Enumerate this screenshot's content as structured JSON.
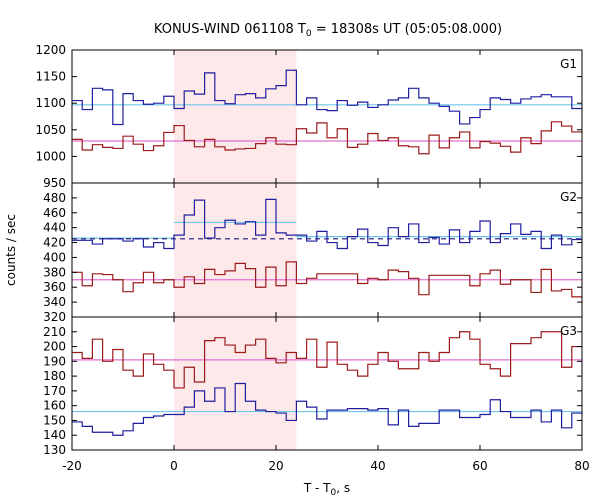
{
  "figure": {
    "title_main": "KONUS-WIND 061108 T",
    "title_sub": "0",
    "title_rest": " = 18308s UT (05:05:08.000)",
    "xlabel_main": "T - T",
    "xlabel_sub": "0",
    "xlabel_rest": ", s",
    "ylabel": "counts / sec"
  },
  "colors": {
    "blue": "#1f1f9e",
    "red": "#9b1a1a",
    "lightblue": "#6fc6ea",
    "pink": "#e070d0",
    "shade": "#fde8ea",
    "dashed": "#1a1a7a"
  },
  "chart_data": [
    {
      "type": "line",
      "panel": "G1",
      "label": "G1",
      "xlim": [
        -20,
        80
      ],
      "ylim": [
        950,
        1200
      ],
      "yticks": [
        950,
        1000,
        1050,
        1100,
        1150,
        1200
      ],
      "xticks": [
        -20,
        0,
        20,
        40,
        60,
        80
      ],
      "shaded_interval": [
        0,
        24
      ],
      "bin_edges": [
        -20,
        -18,
        -16,
        -14,
        -12,
        -10,
        -8,
        -6,
        -4,
        -2,
        0,
        2,
        4,
        6,
        8,
        10,
        12,
        14,
        16,
        18,
        20,
        22,
        24,
        26,
        28,
        30,
        32,
        34,
        36,
        38,
        40,
        42,
        44,
        46,
        48,
        50,
        52,
        54,
        56,
        58,
        60,
        62,
        64,
        66,
        68,
        70,
        72,
        74,
        76,
        78,
        80
      ],
      "series": [
        {
          "values": [
            1105,
            1088,
            1128,
            1125,
            1060,
            1118,
            1105,
            1098,
            1100,
            1113,
            1090,
            1123,
            1117,
            1157,
            1105,
            1099,
            1116,
            1118,
            1110,
            1127,
            1133,
            1162,
            1097,
            1110,
            1088,
            1086,
            1105,
            1096,
            1102,
            1092,
            1097,
            1106,
            1110,
            1128,
            1110,
            1100,
            1094,
            1085,
            1061,
            1073,
            1088,
            1110,
            1107,
            1100,
            1108,
            1112,
            1116,
            1112,
            1112,
            1090
          ],
          "color_key": "blue"
        },
        {
          "values": [
            1032,
            1012,
            1022,
            1017,
            1015,
            1038,
            1023,
            1011,
            1020,
            1045,
            1058,
            1030,
            1018,
            1032,
            1018,
            1012,
            1014,
            1015,
            1024,
            1035,
            1023,
            1022,
            1052,
            1044,
            1063,
            1035,
            1052,
            1017,
            1023,
            1043,
            1030,
            1035,
            1020,
            1018,
            1005,
            1040,
            1016,
            1035,
            1046,
            1016,
            1028,
            1025,
            1019,
            1008,
            1035,
            1024,
            1048,
            1065,
            1057,
            1046
          ],
          "color_key": "red"
        }
      ],
      "fit_lines": [
        {
          "x": [
            -20,
            80
          ],
          "y": [
            1097,
            1097
          ],
          "color_key": "lightblue",
          "dash": false
        },
        {
          "x": [
            -20,
            80
          ],
          "y": [
            1029,
            1029
          ],
          "color_key": "pink",
          "dash": false
        }
      ]
    },
    {
      "type": "line",
      "panel": "G2",
      "label": "G2",
      "xlim": [
        -20,
        80
      ],
      "ylim": [
        320,
        500
      ],
      "yticks": [
        320,
        340,
        360,
        380,
        400,
        420,
        440,
        460,
        480
      ],
      "xticks": [
        -20,
        0,
        20,
        40,
        60,
        80
      ],
      "shaded_interval": [
        0,
        24
      ],
      "bin_edges": [
        -20,
        -18,
        -16,
        -14,
        -12,
        -10,
        -8,
        -6,
        -4,
        -2,
        0,
        2,
        4,
        6,
        8,
        10,
        12,
        14,
        16,
        18,
        20,
        22,
        24,
        26,
        28,
        30,
        32,
        34,
        36,
        38,
        40,
        42,
        44,
        46,
        48,
        50,
        52,
        54,
        56,
        58,
        60,
        62,
        64,
        66,
        68,
        70,
        72,
        74,
        76,
        78,
        80
      ],
      "series": [
        {
          "values": [
            423,
            423,
            418,
            425,
            425,
            422,
            425,
            414,
            420,
            412,
            430,
            457,
            477,
            426,
            440,
            450,
            445,
            448,
            430,
            478,
            433,
            430,
            430,
            422,
            435,
            420,
            412,
            428,
            438,
            420,
            416,
            440,
            428,
            445,
            420,
            427,
            418,
            437,
            420,
            435,
            449,
            420,
            432,
            445,
            431,
            435,
            412,
            430,
            417,
            424
          ],
          "color_key": "blue"
        },
        {
          "values": [
            380,
            362,
            378,
            377,
            370,
            354,
            366,
            380,
            366,
            370,
            360,
            374,
            365,
            384,
            377,
            382,
            392,
            385,
            360,
            387,
            362,
            394,
            365,
            372,
            378,
            378,
            378,
            378,
            365,
            372,
            370,
            383,
            381,
            372,
            350,
            376,
            376,
            376,
            376,
            362,
            378,
            383,
            364,
            370,
            370,
            353,
            384,
            355,
            357,
            347
          ],
          "color_key": "red"
        }
      ],
      "fit_lines": [
        {
          "x": [
            0,
            24
          ],
          "y": [
            447,
            447
          ],
          "color_key": "lightblue",
          "dash": false
        },
        {
          "x": [
            -20,
            0
          ],
          "y": [
            426,
            426
          ],
          "color_key": "lightblue",
          "dash": false
        },
        {
          "x": [
            24,
            80
          ],
          "y": [
            428,
            428
          ],
          "color_key": "lightblue",
          "dash": false
        },
        {
          "x": [
            -20,
            80
          ],
          "y": [
            425,
            425
          ],
          "color_key": "dashed",
          "dash": true
        },
        {
          "x": [
            -20,
            80
          ],
          "y": [
            370,
            370
          ],
          "color_key": "pink",
          "dash": false
        }
      ]
    },
    {
      "type": "line",
      "panel": "G3",
      "label": "G3",
      "xlim": [
        -20,
        80
      ],
      "ylim": [
        130,
        220
      ],
      "yticks": [
        130,
        140,
        150,
        160,
        170,
        180,
        190,
        200,
        210
      ],
      "xticks": [
        -20,
        0,
        20,
        40,
        60,
        80
      ],
      "shaded_interval": [
        0,
        24
      ],
      "bin_edges": [
        -20,
        -18,
        -16,
        -14,
        -12,
        -10,
        -8,
        -6,
        -4,
        -2,
        0,
        2,
        4,
        6,
        8,
        10,
        12,
        14,
        16,
        18,
        20,
        22,
        24,
        26,
        28,
        30,
        32,
        34,
        36,
        38,
        40,
        42,
        44,
        46,
        48,
        50,
        52,
        54,
        56,
        58,
        60,
        62,
        64,
        66,
        68,
        70,
        72,
        74,
        76,
        78,
        80
      ],
      "series": [
        {
          "values": [
            149,
            146,
            142,
            142,
            140,
            143,
            148,
            152,
            153,
            154,
            154,
            159,
            170,
            163,
            172,
            156,
            175,
            163,
            157,
            156,
            155,
            150,
            163,
            159,
            151,
            157,
            157,
            158,
            158,
            157,
            158,
            147,
            157,
            146,
            148,
            148,
            157,
            157,
            152,
            152,
            154,
            164,
            156,
            152,
            152,
            157,
            149,
            157,
            145,
            155
          ],
          "color_key": "blue"
        },
        {
          "values": [
            196,
            192,
            205,
            190,
            198,
            184,
            180,
            195,
            188,
            184,
            172,
            186,
            176,
            204,
            206,
            201,
            196,
            201,
            205,
            192,
            189,
            196,
            192,
            205,
            186,
            203,
            188,
            184,
            180,
            188,
            196,
            190,
            185,
            185,
            196,
            190,
            196,
            206,
            210,
            205,
            188,
            185,
            180,
            202,
            202,
            206,
            210,
            210,
            186,
            200
          ],
          "color_key": "red"
        }
      ],
      "fit_lines": [
        {
          "x": [
            -20,
            80
          ],
          "y": [
            156,
            156
          ],
          "color_key": "lightblue",
          "dash": false
        },
        {
          "x": [
            -20,
            80
          ],
          "y": [
            191,
            191
          ],
          "color_key": "pink",
          "dash": false
        }
      ]
    }
  ]
}
